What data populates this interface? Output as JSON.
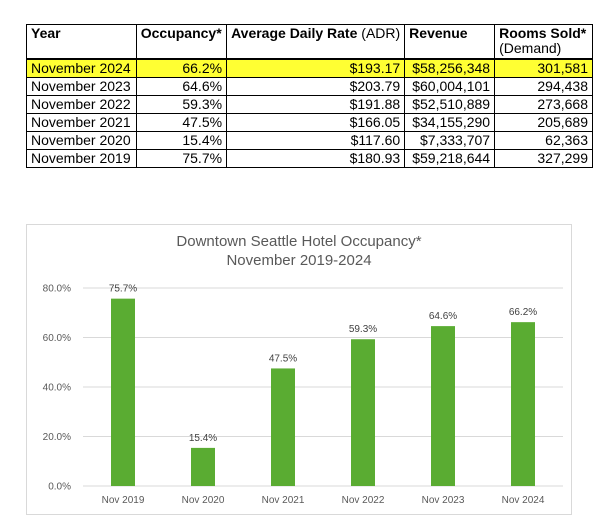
{
  "table": {
    "headers": [
      {
        "bold": "Year",
        "normal": ""
      },
      {
        "bold": "Occupancy*",
        "normal": ""
      },
      {
        "bold": "Average Daily Rate",
        "normal": " (ADR)"
      },
      {
        "bold": "Revenue",
        "normal": ""
      },
      {
        "bold": "Rooms Sold*",
        "normal": "(Demand)"
      }
    ],
    "rows": [
      {
        "year": "November 2024",
        "occupancy": "66.2%",
        "adr": "$193.17",
        "revenue": "$58,256,348",
        "rooms_sold": "301,581",
        "highlighted": true
      },
      {
        "year": "November 2023",
        "occupancy": "64.6%",
        "adr": "$203.79",
        "revenue": "$60,004,101",
        "rooms_sold": "294,438",
        "highlighted": false
      },
      {
        "year": "November 2022",
        "occupancy": "59.3%",
        "adr": "$191.88",
        "revenue": "$52,510,889",
        "rooms_sold": "273,668",
        "highlighted": false
      },
      {
        "year": "November 2021",
        "occupancy": "47.5%",
        "adr": "$166.05",
        "revenue": "$34,155,290",
        "rooms_sold": "205,689",
        "highlighted": false
      },
      {
        "year": "November 2020",
        "occupancy": "15.4%",
        "adr": "$117.60",
        "revenue": "$7,333,707",
        "rooms_sold": "62,363",
        "highlighted": false
      },
      {
        "year": "November 2019",
        "occupancy": "75.7%",
        "adr": "$180.93",
        "revenue": "$59,218,644",
        "rooms_sold": "327,299",
        "highlighted": false
      }
    ],
    "highlight_color": "#ffff33"
  },
  "chart_data": {
    "type": "bar",
    "title": "Downtown Seattle Hotel Occupancy*",
    "subtitle": "November 2019-2024",
    "categories": [
      "Nov 2019",
      "Nov 2020",
      "Nov 2021",
      "Nov 2022",
      "Nov 2023",
      "Nov 2024"
    ],
    "values": [
      75.7,
      15.4,
      47.5,
      59.3,
      64.6,
      66.2
    ],
    "data_labels": [
      "75.7%",
      "15.4%",
      "47.5%",
      "59.3%",
      "64.6%",
      "66.2%"
    ],
    "ylim": [
      0,
      80
    ],
    "yticks": [
      0,
      20,
      40,
      60,
      80
    ],
    "ytick_labels": [
      "0.0%",
      "20.0%",
      "40.0%",
      "60.0%",
      "80.0%"
    ],
    "grid": true,
    "bar_color": "#5aac32",
    "legend": "none"
  }
}
